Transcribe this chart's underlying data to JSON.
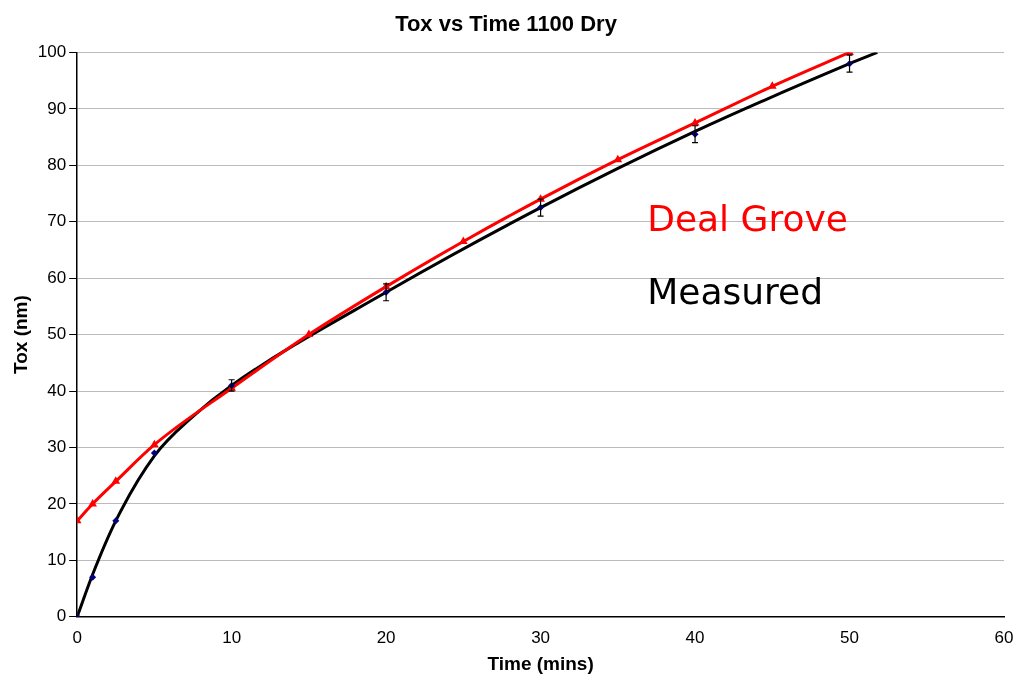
{
  "chart_data": {
    "type": "line",
    "title": "Tox vs Time 1100 Dry",
    "xlabel": "Time (mins)",
    "ylabel": "Tox (nm)",
    "xlim": [
      0,
      60
    ],
    "xticks": [
      0,
      10,
      20,
      30,
      40,
      50,
      60
    ],
    "ylim": [
      0,
      100
    ],
    "yticks": [
      0,
      10,
      20,
      30,
      40,
      50,
      60,
      70,
      80,
      90,
      100
    ],
    "grid": "y",
    "series": [
      {
        "name": "Deal Grove",
        "color": "#ff0000",
        "marker": "triangle",
        "x": [
          0,
          1,
          2.5,
          5,
          10,
          15,
          20,
          25,
          30,
          35,
          40,
          45,
          50
        ],
        "values": [
          17,
          20,
          24,
          30.5,
          40.5,
          50,
          58.5,
          66.5,
          74,
          81,
          87.5,
          94,
          100
        ]
      },
      {
        "name": "Measured",
        "color": "#000000",
        "marker": "none",
        "x": [
          0,
          1,
          2.5,
          5,
          7.5,
          10,
          20,
          30,
          40,
          50,
          51.8
        ],
        "values": [
          0,
          7.5,
          17,
          28.5,
          35.5,
          41,
          57.5,
          72.5,
          86,
          98,
          100
        ]
      },
      {
        "type": "scatter",
        "color": "#000080",
        "marker": "diamond",
        "x": [
          0,
          1,
          2.5,
          5,
          10,
          20,
          30,
          40,
          50
        ],
        "values": [
          0,
          7,
          17,
          29,
          41,
          57.5,
          72.5,
          85.5,
          98
        ],
        "errors": [
          null,
          null,
          null,
          null,
          1,
          1.5,
          1.5,
          1.5,
          1.5
        ]
      }
    ]
  }
}
